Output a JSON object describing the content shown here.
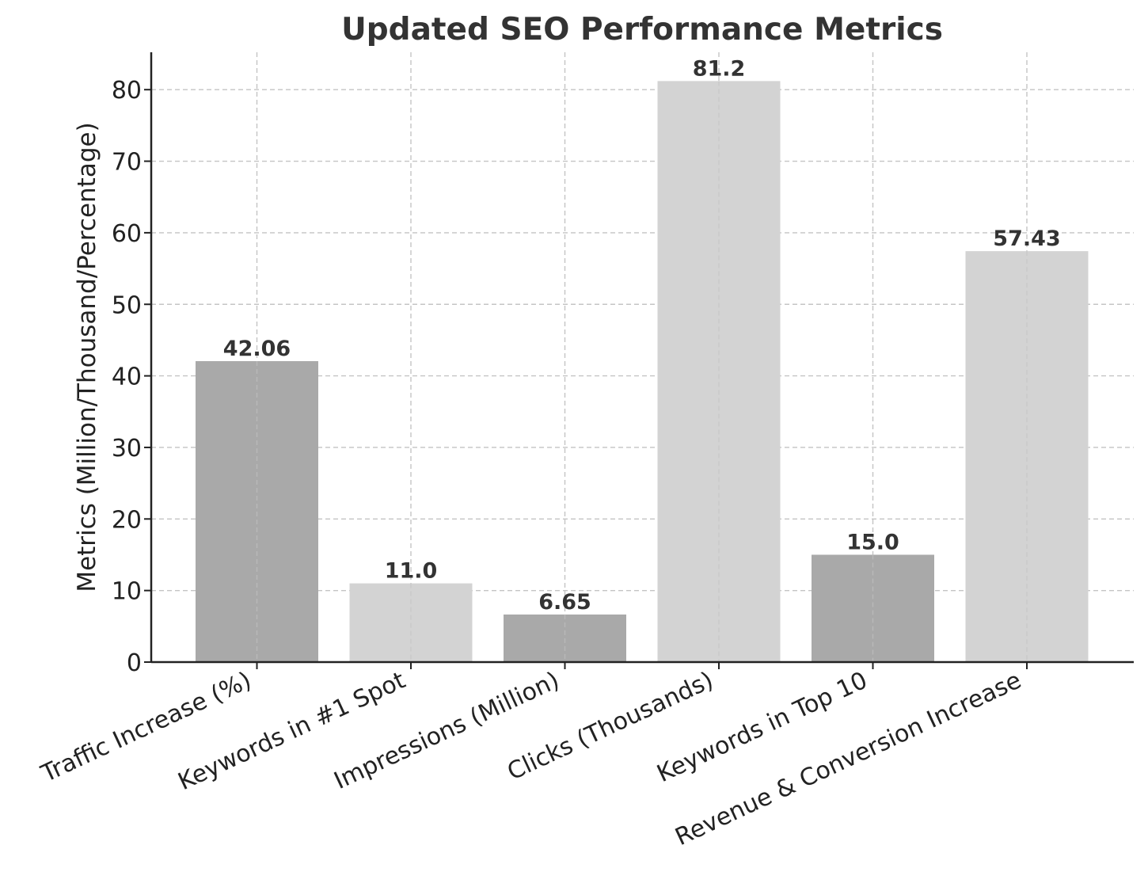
{
  "chart_data": {
    "type": "bar",
    "title": "Updated SEO Performance Metrics",
    "xlabel": "",
    "ylabel": "Metrics (Million/Thousand/Percentage)",
    "categories": [
      "Traffic Increase (%)",
      "Keywords in #1 Spot",
      "Impressions (Million)",
      "Clicks (Thousands)",
      "Keywords in Top 10",
      "Revenue & Conversion Increase"
    ],
    "values": [
      42.06,
      11.0,
      6.65,
      81.2,
      15.0,
      57.43
    ],
    "value_labels": [
      "42.06",
      "11.0",
      "6.65",
      "81.2",
      "15.0",
      "57.43"
    ],
    "bar_colors": [
      "#a9a9a9",
      "#d3d3d3",
      "#a9a9a9",
      "#d3d3d3",
      "#a9a9a9",
      "#d3d3d3"
    ],
    "ylim": [
      0,
      85
    ],
    "yticks": [
      0,
      10,
      20,
      30,
      40,
      50,
      60,
      70,
      80
    ],
    "grid": true,
    "legend": "none"
  }
}
